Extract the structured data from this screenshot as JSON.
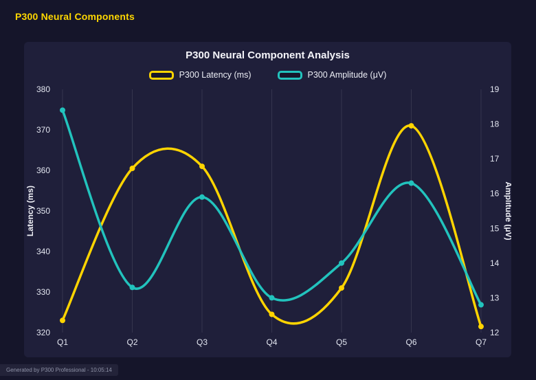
{
  "page": {
    "title": "P300 Neural Components",
    "footer": "Generated by P300 Professional - 10:05:14"
  },
  "chart_data": {
    "type": "line",
    "title": "P300 Neural Component Analysis",
    "categories": [
      "Q1",
      "Q2",
      "Q3",
      "Q4",
      "Q5",
      "Q6",
      "Q7"
    ],
    "series": [
      {
        "key": "latency",
        "name": "P300 Latency (ms)",
        "color": "#ffd400",
        "axis": "left",
        "values": [
          323,
          360.5,
          361,
          324.5,
          331,
          371,
          321.5
        ]
      },
      {
        "key": "amplitude",
        "name": "P300 Amplitude (μV)",
        "color": "#22c3bd",
        "axis": "right",
        "values": [
          18.4,
          13.3,
          15.9,
          13.0,
          14.0,
          16.3,
          12.8
        ]
      }
    ],
    "left_axis": {
      "label": "Latency (ms)",
      "min": 320,
      "max": 380,
      "step": 10
    },
    "right_axis": {
      "label": "Amplitude (μV)",
      "min": 12,
      "max": 19,
      "step": 1
    },
    "grid": "vertical-only",
    "legend_position": "top",
    "line_style": "smooth-spline-with-point-markers",
    "background": "#1f1f3a",
    "accent_color": "#ffd700"
  }
}
